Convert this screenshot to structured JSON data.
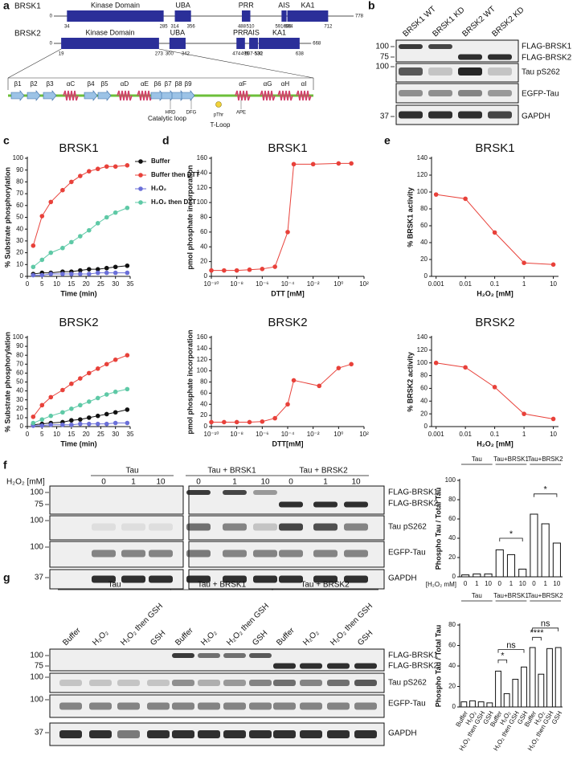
{
  "panel_labels": [
    "a",
    "b",
    "c",
    "d",
    "e",
    "f",
    "g"
  ],
  "domains": {
    "proteins": [
      {
        "name": "BRSK1",
        "start": 0,
        "length": 778,
        "domains": [
          {
            "name": "Kinase Domain",
            "start": 34,
            "end": 285
          },
          {
            "name": "UBA",
            "start": 314,
            "end": 356
          },
          {
            "name": "PRR",
            "start": 488,
            "end": 510
          },
          {
            "name": "AIS",
            "start": 591,
            "end": 604,
            "label": "591-604"
          },
          {
            "name": "KA1",
            "start": 606,
            "end": 712
          }
        ]
      },
      {
        "name": "BRSK2",
        "start": 0,
        "length": 668,
        "domains": [
          {
            "name": "Kinase Domain",
            "start": 19,
            "end": 273
          },
          {
            "name": "UBA",
            "start": 300,
            "end": 342
          },
          {
            "name": "PRR",
            "start": 474,
            "end": 496
          },
          {
            "name": "AIS",
            "start": 507,
            "end": 530,
            "label": "507-530"
          },
          {
            "name": "KA1",
            "start": 532,
            "end": 638
          }
        ]
      }
    ],
    "secondary_structure": [
      "β1",
      "β2",
      "β3",
      "αC",
      "β4",
      "β5",
      "αD",
      "αE",
      "β6",
      "β7",
      "β8",
      "β9",
      "αF",
      "αG",
      "αH",
      "αI"
    ],
    "motifs": [
      "HRD",
      "Catalytic loop",
      "DFG",
      "pThr",
      "T-Loop",
      "APE"
    ]
  },
  "blot_b": {
    "lanes": [
      "BRSK1 WT",
      "BRSK1 KD",
      "BRSK2 WT",
      "BRSK2 KD"
    ],
    "markers": [
      100,
      75,
      100,
      37
    ],
    "proteins": [
      "FLAG-BRSK1",
      "FLAG-BRSK2",
      "Tau pS262",
      "EGFP-Tau",
      "GAPDH"
    ]
  },
  "chart_data": [
    {
      "type": "line",
      "title": "BRSK1",
      "xlabel": "Time (min)",
      "ylabel": "% Substrate phosphorylation",
      "x": [
        2,
        5,
        8,
        12,
        15,
        18,
        21,
        24,
        27,
        30,
        34
      ],
      "series": [
        {
          "name": "Buffer",
          "color": "#111111",
          "values": [
            2,
            3,
            3,
            4,
            4,
            5,
            6,
            6,
            7,
            8,
            9
          ]
        },
        {
          "name": "Buffer then DTT",
          "color": "#e8413a",
          "values": [
            26,
            51,
            63,
            73,
            80,
            85,
            89,
            91,
            93,
            93,
            94
          ]
        },
        {
          "name": "H₂O₂",
          "color": "#6a6fd8",
          "values": [
            1,
            1,
            2,
            2,
            2,
            2,
            2,
            3,
            3,
            3,
            3
          ]
        },
        {
          "name": "H₂O₂ then DTT",
          "color": "#5ec9a6",
          "values": [
            8,
            14,
            20,
            24,
            29,
            34,
            39,
            45,
            50,
            54,
            58
          ]
        }
      ],
      "xlim": [
        0,
        35
      ],
      "ylim": [
        0,
        100
      ],
      "xticks": [
        0,
        5,
        10,
        15,
        20,
        25,
        30,
        35
      ],
      "yticks": [
        0,
        10,
        20,
        30,
        40,
        50,
        60,
        70,
        80,
        90,
        100
      ],
      "legend": "upper right"
    },
    {
      "type": "line",
      "title": "BRSK2",
      "xlabel": "Time (min)",
      "ylabel": "% Substrate phosphorylation",
      "x": [
        2,
        5,
        8,
        12,
        15,
        18,
        21,
        24,
        27,
        30,
        34
      ],
      "series": [
        {
          "color": "#111111",
          "values": [
            2,
            3,
            4,
            5,
            7,
            8,
            10,
            12,
            14,
            16,
            19
          ]
        },
        {
          "color": "#e8413a",
          "values": [
            11,
            24,
            33,
            41,
            48,
            54,
            60,
            65,
            70,
            75,
            80
          ]
        },
        {
          "color": "#6a6fd8",
          "values": [
            1,
            1,
            2,
            2,
            2,
            3,
            3,
            3,
            3,
            4,
            4
          ]
        },
        {
          "color": "#5ec9a6",
          "values": [
            4,
            8,
            12,
            16,
            20,
            24,
            28,
            32,
            36,
            39,
            42
          ]
        }
      ],
      "xlim": [
        0,
        35
      ],
      "ylim": [
        0,
        100
      ],
      "xticks": [
        0,
        5,
        10,
        15,
        20,
        25,
        30,
        35
      ],
      "yticks": [
        0,
        10,
        20,
        30,
        40,
        50,
        60,
        70,
        80,
        90,
        100
      ]
    },
    {
      "type": "line",
      "title": "BRSK1",
      "xlabel": "DTT [mM]",
      "ylabel": "pmol phosphate incorporation",
      "xscale": "log",
      "x": [
        1e-10,
        1e-09,
        1e-08,
        1e-07,
        1e-06,
        1e-05,
        0.0001,
        0.0003,
        0.01,
        1,
        10
      ],
      "series": [
        {
          "color": "#e8413a",
          "values": [
            8,
            8,
            8,
            9,
            10,
            13,
            60,
            152,
            152,
            153,
            153
          ]
        }
      ],
      "xlim": [
        1e-10,
        100
      ],
      "ylim": [
        0,
        160
      ],
      "xticks": [
        {
          "value": 1e-10,
          "label": "10⁻¹⁰"
        },
        {
          "value": 1e-08,
          "label": "10⁻⁸"
        },
        {
          "value": 1e-06,
          "label": "10⁻⁶"
        },
        {
          "value": 0.0001,
          "label": "10⁻⁴"
        },
        {
          "value": 0.01,
          "label": "10⁻²"
        },
        {
          "value": 1,
          "label": "10⁰"
        },
        {
          "value": 100,
          "label": "10²"
        }
      ],
      "yticks": [
        0,
        20,
        40,
        60,
        80,
        100,
        120,
        140,
        160
      ]
    },
    {
      "type": "line",
      "title": "BRSK2",
      "xlabel": "DTT[mM]",
      "ylabel": "pmol phosphate incorporation",
      "xscale": "log",
      "x": [
        1e-10,
        1e-09,
        1e-08,
        1e-07,
        1e-06,
        1e-05,
        0.0001,
        0.0003,
        0.03,
        1,
        10
      ],
      "series": [
        {
          "color": "#e8413a",
          "values": [
            8,
            8,
            8,
            8,
            9,
            15,
            40,
            83,
            73,
            105,
            112
          ]
        }
      ],
      "xlim": [
        1e-10,
        100
      ],
      "ylim": [
        0,
        160
      ],
      "xticks": [
        {
          "value": 1e-10,
          "label": "10⁻¹⁰"
        },
        {
          "value": 1e-08,
          "label": "10⁻⁸"
        },
        {
          "value": 1e-06,
          "label": "10⁻⁶"
        },
        {
          "value": 0.0001,
          "label": "10⁻⁴"
        },
        {
          "value": 0.01,
          "label": "10⁻²"
        },
        {
          "value": 1,
          "label": "10⁰"
        },
        {
          "value": 100,
          "label": "10²"
        }
      ],
      "yticks": [
        0,
        20,
        40,
        60,
        80,
        100,
        120,
        140,
        160
      ]
    },
    {
      "type": "line",
      "title": "BRSK1",
      "xlabel": "H₂O₂ [mM]",
      "ylabel": "% BRSK1 activity",
      "xscale": "log",
      "x": [
        0.001,
        0.01,
        0.1,
        1,
        10
      ],
      "series": [
        {
          "color": "#e8413a",
          "values": [
            97,
            92,
            52,
            16,
            14
          ]
        }
      ],
      "xlim": [
        0.0007,
        15
      ],
      "ylim": [
        0,
        140
      ],
      "xticks": [
        0.001,
        0.01,
        0.1,
        1,
        10
      ],
      "yticks": [
        0,
        20,
        40,
        60,
        80,
        100,
        120,
        140
      ]
    },
    {
      "type": "line",
      "title": "BRSK2",
      "xlabel": "H₂O₂ [mM]",
      "ylabel": "% BRSK2 activity",
      "xscale": "log",
      "x": [
        0.001,
        0.01,
        0.1,
        1,
        10
      ],
      "series": [
        {
          "color": "#e8413a",
          "values": [
            100,
            93,
            62,
            20,
            12
          ]
        }
      ],
      "xlim": [
        0.0007,
        15
      ],
      "ylim": [
        0,
        140
      ],
      "xticks": [
        0.001,
        0.01,
        0.1,
        1,
        10
      ],
      "yticks": [
        0,
        20,
        40,
        60,
        80,
        100,
        120,
        140
      ]
    },
    {
      "type": "bar",
      "ylabel": "Phospho Tau / Total Tau",
      "xlabel": "[H₂O₂ mM]",
      "groups": [
        "Tau",
        "Tau+BRSK1",
        "Tau+BRSK2"
      ],
      "categories": [
        "0",
        "1",
        "10",
        "0",
        "1",
        "10",
        "0",
        "1",
        "10"
      ],
      "values": [
        2,
        3,
        3,
        28,
        23,
        8,
        65,
        55,
        35
      ],
      "color": "#ffffff",
      "ylim": [
        0,
        100
      ],
      "yticks": [
        0,
        20,
        40,
        60,
        80,
        100
      ],
      "significance": [
        "*",
        "*"
      ]
    },
    {
      "type": "bar",
      "ylabel": "Phospho Tau / Total Tau",
      "groups": [
        "Tau",
        "Tau+BRSK1",
        "Tau+BRSK2"
      ],
      "categories": [
        "Buffer",
        "H₂O₂",
        "H₂O₂ then GSH",
        "GSH",
        "Buffer",
        "H₂O₂",
        "H₂O₂ then GSH",
        "GSH",
        "Buffer",
        "H₂O₂",
        "H₂O₂ then GSH",
        "GSH"
      ],
      "values": [
        5,
        6,
        5,
        4,
        35,
        13,
        27,
        39,
        58,
        32,
        57,
        58
      ],
      "color": "#ffffff",
      "ylim": [
        0,
        80
      ],
      "yticks": [
        0,
        20,
        40,
        60,
        80
      ],
      "significance": [
        "*",
        "ns",
        "****",
        "ns"
      ]
    }
  ],
  "blot_f": {
    "treatment_label": "H₂O₂ [mM]",
    "groups": [
      "Tau",
      "Tau + BRSK1",
      "Tau + BRSK2"
    ],
    "lanes": [
      "0",
      "1",
      "10",
      "0",
      "1",
      "10",
      "0",
      "1",
      "10"
    ],
    "markers": [
      100,
      75,
      100,
      100,
      37
    ],
    "proteins": [
      "FLAG-BRSK1",
      "FLAG-BRSK2",
      "Tau pS262",
      "EGFP-Tau",
      "GAPDH"
    ]
  },
  "blot_g": {
    "groups": [
      "Tau",
      "Tau + BRSK1",
      "Tau + BRSK2"
    ],
    "lanes": [
      "Buffer",
      "H₂O₂",
      "H₂O₂ then GSH",
      "GSH",
      "Buffer",
      "H₂O₂",
      "H₂O₂ then GSH",
      "GSH",
      "Buffer",
      "H₂O₂",
      "H₂O₂ then GSH",
      "GSH"
    ],
    "markers": [
      100,
      75,
      100,
      100,
      37
    ],
    "proteins": [
      "FLAG-BRSK1",
      "FLAG-BRSK2",
      "Tau pS262",
      "EGFP-Tau",
      "GAPDH"
    ]
  }
}
